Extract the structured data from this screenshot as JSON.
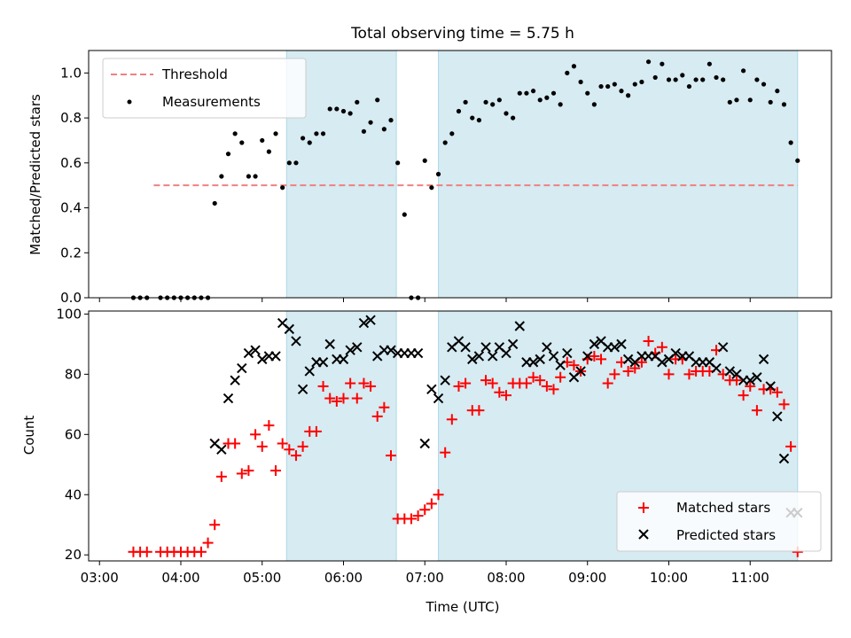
{
  "title": "Total observing time = 5.75 h",
  "colors": {
    "threshold": "#f08080",
    "measurement": "#000000",
    "matched": "#ff0000",
    "predicted": "#000000",
    "shade": "#add8e6"
  },
  "chart_data": [
    {
      "type": "scatter",
      "ylabel": "Matched/Predicted stars",
      "xlim": [
        "03:00",
        "12:00"
      ],
      "ylim": [
        0,
        1.1
      ],
      "yticks": [
        "0.0",
        "0.2",
        "0.4",
        "0.6",
        "0.8",
        "1.0"
      ],
      "shaded_spans": [
        [
          "05:18",
          "06:39"
        ],
        [
          "07:10",
          "11:35"
        ]
      ],
      "legend_position": "upper-left",
      "threshold": {
        "name": "Threshold",
        "y": 0.5,
        "x_range": [
          "03:40",
          "11:35"
        ]
      },
      "series": [
        {
          "name": "Measurements",
          "x": [
            "03:25",
            "03:30",
            "03:35",
            "03:45",
            "03:50",
            "03:55",
            "04:00",
            "04:05",
            "04:10",
            "04:15",
            "04:20",
            "04:25",
            "04:30",
            "04:35",
            "04:40",
            "04:45",
            "04:50",
            "04:55",
            "05:00",
            "05:05",
            "05:10",
            "05:15",
            "05:20",
            "05:25",
            "05:30",
            "05:35",
            "05:40",
            "05:45",
            "05:50",
            "05:55",
            "06:00",
            "06:05",
            "06:10",
            "06:15",
            "06:20",
            "06:25",
            "06:30",
            "06:35",
            "06:40",
            "06:45",
            "06:50",
            "06:55",
            "07:00",
            "07:05",
            "07:10",
            "07:15",
            "07:20",
            "07:25",
            "07:30",
            "07:35",
            "07:40",
            "07:45",
            "07:50",
            "07:55",
            "08:00",
            "08:05",
            "08:10",
            "08:15",
            "08:20",
            "08:25",
            "08:30",
            "08:35",
            "08:40",
            "08:45",
            "08:50",
            "08:55",
            "09:00",
            "09:05",
            "09:10",
            "09:15",
            "09:20",
            "09:25",
            "09:30",
            "09:35",
            "09:40",
            "09:45",
            "09:50",
            "09:55",
            "10:00",
            "10:05",
            "10:10",
            "10:15",
            "10:20",
            "10:25",
            "10:30",
            "10:35",
            "10:40",
            "10:45",
            "10:50",
            "10:55",
            "11:00",
            "11:05",
            "11:10",
            "11:15",
            "11:20",
            "11:25",
            "11:30",
            "11:35"
          ],
          "y": [
            0,
            0,
            0,
            0,
            0,
            0,
            0,
            0,
            0,
            0,
            0,
            0.42,
            0.54,
            0.64,
            0.73,
            0.69,
            0.54,
            0.54,
            0.7,
            0.65,
            0.73,
            0.49,
            0.6,
            0.6,
            0.71,
            0.69,
            0.73,
            0.73,
            0.84,
            0.84,
            0.83,
            0.82,
            0.87,
            0.74,
            0.78,
            0.88,
            0.75,
            0.79,
            0.6,
            0.37,
            0,
            0,
            0.61,
            0.49,
            0.55,
            0.69,
            0.73,
            0.83,
            0.87,
            0.8,
            0.79,
            0.87,
            0.86,
            0.88,
            0.82,
            0.8,
            0.91,
            0.91,
            0.92,
            0.88,
            0.89,
            0.91,
            0.86,
            1.0,
            1.03,
            0.96,
            0.91,
            0.86,
            0.94,
            0.94,
            0.95,
            0.92,
            0.9,
            0.95,
            0.96,
            1.05,
            0.98,
            1.04,
            0.97,
            0.97,
            0.99,
            0.94,
            0.97,
            0.97,
            1.04,
            0.98,
            0.97,
            0.87,
            0.88,
            1.01,
            0.88,
            0.97,
            0.95,
            0.87,
            0.92,
            0.86,
            0.69,
            0.61
          ]
        }
      ]
    },
    {
      "type": "scatter",
      "xlabel": "Time (UTC)",
      "ylabel": "Count",
      "xlim": [
        "03:00",
        "12:00"
      ],
      "ylim": [
        18,
        101
      ],
      "xticks": [
        "03:00",
        "04:00",
        "05:00",
        "06:00",
        "07:00",
        "08:00",
        "09:00",
        "10:00",
        "11:00"
      ],
      "yticks": [
        "20",
        "40",
        "60",
        "80",
        "100"
      ],
      "shaded_spans": [
        [
          "05:18",
          "06:39"
        ],
        [
          "07:10",
          "11:35"
        ]
      ],
      "legend_position": "lower-right",
      "series": [
        {
          "name": "Matched stars",
          "marker": "+",
          "x": [
            "03:25",
            "03:30",
            "03:35",
            "03:45",
            "03:50",
            "03:55",
            "04:00",
            "04:05",
            "04:10",
            "04:15",
            "04:20",
            "04:25",
            "04:30",
            "04:35",
            "04:40",
            "04:45",
            "04:50",
            "04:55",
            "05:00",
            "05:05",
            "05:10",
            "05:15",
            "05:20",
            "05:25",
            "05:30",
            "05:35",
            "05:40",
            "05:45",
            "05:50",
            "05:55",
            "06:00",
            "06:05",
            "06:10",
            "06:15",
            "06:20",
            "06:25",
            "06:30",
            "06:35",
            "06:40",
            "06:45",
            "06:50",
            "06:55",
            "07:00",
            "07:05",
            "07:10",
            "07:15",
            "07:20",
            "07:25",
            "07:30",
            "07:35",
            "07:40",
            "07:45",
            "07:50",
            "07:55",
            "08:00",
            "08:05",
            "08:10",
            "08:15",
            "08:20",
            "08:25",
            "08:30",
            "08:35",
            "08:40",
            "08:45",
            "08:50",
            "08:55",
            "09:00",
            "09:05",
            "09:10",
            "09:15",
            "09:20",
            "09:25",
            "09:30",
            "09:35",
            "09:40",
            "09:45",
            "09:50",
            "09:55",
            "10:00",
            "10:05",
            "10:10",
            "10:15",
            "10:20",
            "10:25",
            "10:30",
            "10:35",
            "10:40",
            "10:45",
            "10:50",
            "10:55",
            "11:00",
            "11:05",
            "11:10",
            "11:15",
            "11:20",
            "11:25",
            "11:30",
            "11:35"
          ],
          "y": [
            21,
            21,
            21,
            21,
            21,
            21,
            21,
            21,
            21,
            21,
            24,
            30,
            46,
            57,
            57,
            47,
            48,
            60,
            56,
            63,
            48,
            57,
            55,
            53,
            56,
            61,
            61,
            76,
            72,
            71,
            72,
            77,
            72,
            77,
            76,
            66,
            69,
            53,
            32,
            32,
            32,
            33,
            35,
            37,
            40,
            54,
            65,
            76,
            77,
            68,
            68,
            78,
            77,
            74,
            73,
            77,
            77,
            77,
            79,
            78,
            76,
            75,
            79,
            84,
            83,
            81,
            85,
            86,
            85,
            77,
            80,
            84,
            81,
            82,
            84,
            91,
            87,
            89,
            80,
            85,
            85,
            80,
            81,
            81,
            81,
            88,
            80,
            78,
            78,
            73,
            76,
            68,
            75,
            75,
            74,
            70,
            56,
            21
          ]
        },
        {
          "name": "Predicted stars",
          "marker": "x",
          "x": [
            "04:25",
            "04:30",
            "04:35",
            "04:40",
            "04:45",
            "04:50",
            "04:55",
            "05:00",
            "05:05",
            "05:10",
            "05:15",
            "05:20",
            "05:25",
            "05:30",
            "05:35",
            "05:40",
            "05:45",
            "05:50",
            "05:55",
            "06:00",
            "06:05",
            "06:10",
            "06:15",
            "06:20",
            "06:25",
            "06:30",
            "06:35",
            "06:40",
            "06:45",
            "06:50",
            "06:55",
            "07:00",
            "07:05",
            "07:10",
            "07:15",
            "07:20",
            "07:25",
            "07:30",
            "07:35",
            "07:40",
            "07:45",
            "07:50",
            "07:55",
            "08:00",
            "08:05",
            "08:10",
            "08:15",
            "08:20",
            "08:25",
            "08:30",
            "08:35",
            "08:40",
            "08:45",
            "08:50",
            "08:55",
            "09:00",
            "09:05",
            "09:10",
            "09:15",
            "09:20",
            "09:25",
            "09:30",
            "09:35",
            "09:40",
            "09:45",
            "09:50",
            "09:55",
            "10:00",
            "10:05",
            "10:10",
            "10:15",
            "10:20",
            "10:25",
            "10:30",
            "10:35",
            "10:40",
            "10:45",
            "10:50",
            "10:55",
            "11:00",
            "11:05",
            "11:10",
            "11:15",
            "11:20",
            "11:25",
            "11:30",
            "11:35"
          ],
          "y": [
            57,
            55,
            72,
            78,
            82,
            87,
            88,
            85,
            86,
            86,
            97,
            95,
            91,
            75,
            81,
            84,
            84,
            90,
            85,
            85,
            88,
            89,
            97,
            98,
            86,
            88,
            88,
            87,
            87,
            87,
            87,
            57,
            75,
            72,
            78,
            89,
            91,
            89,
            85,
            86,
            89,
            86,
            89,
            87,
            90,
            96,
            84,
            84,
            85,
            89,
            86,
            83,
            87,
            79,
            81,
            86,
            90,
            91,
            89,
            89,
            90,
            85,
            84,
            86,
            86,
            86,
            84,
            85,
            87,
            86,
            86,
            84,
            84,
            84,
            82,
            89,
            81,
            80,
            78,
            78,
            79,
            85,
            76,
            66,
            52,
            34,
            34
          ]
        }
      ]
    }
  ]
}
